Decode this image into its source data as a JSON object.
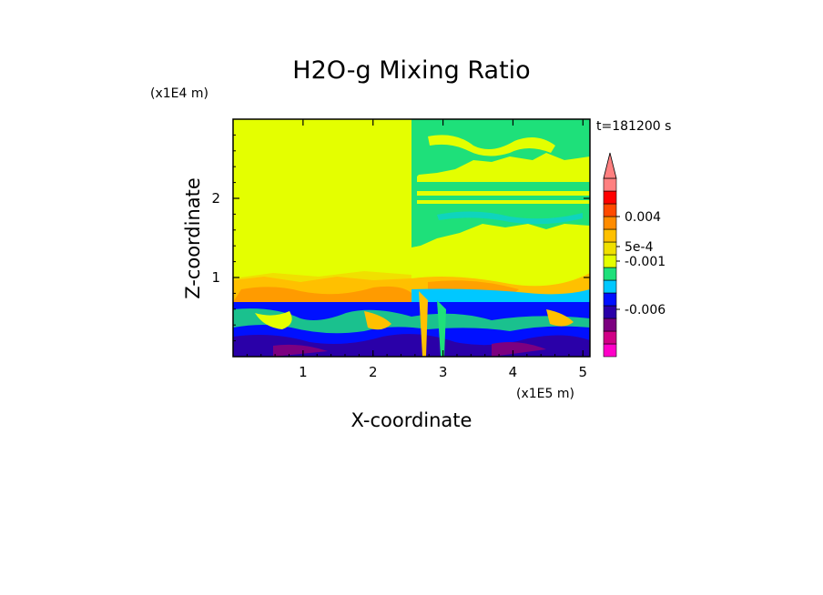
{
  "chart_data": {
    "type": "heatmap",
    "title": "H2O-g Mixing Ratio",
    "xlabel": "X-coordinate",
    "ylabel": "Z-coordinate",
    "x_multiplier": "(x1E5 m)",
    "y_multiplier": "(x1E4 m)",
    "time_label": "t=181200 s",
    "xlim": [
      0,
      5.1
    ],
    "ylim": [
      0,
      3.0
    ],
    "x_ticks": [
      "1",
      "2",
      "3",
      "4",
      "5"
    ],
    "y_ticks": [
      "1",
      "2"
    ],
    "colorbar": {
      "extend": "max",
      "labels": [
        "0.004",
        "5e-4",
        "-0.001",
        "-0.006"
      ],
      "colors": [
        "#ff00c8",
        "#d10086",
        "#7c0080",
        "#2a00a8",
        "#0010ff",
        "#00c8ff",
        "#1ee07a",
        "#e4ff00",
        "#f0e000",
        "#ffc000",
        "#ff8c00",
        "#ff4a00",
        "#ff0000",
        "#ff8080"
      ]
    },
    "regions": [
      {
        "name": "moist plume, x 2.6-5.1, z 1.4-3.0",
        "value_range": "-0.001 to 0.0005"
      },
      {
        "name": "upper layer, x 0-2.6, z 1.0-3.0",
        "value_range": "0.0005 to 0.001"
      },
      {
        "name": "transition band, z 0.7-1.0",
        "value_range": "0.001 to 0.004"
      },
      {
        "name": "boundary layer, z 0-0.7",
        "value_range": "-0.006 to -0.001"
      }
    ]
  }
}
